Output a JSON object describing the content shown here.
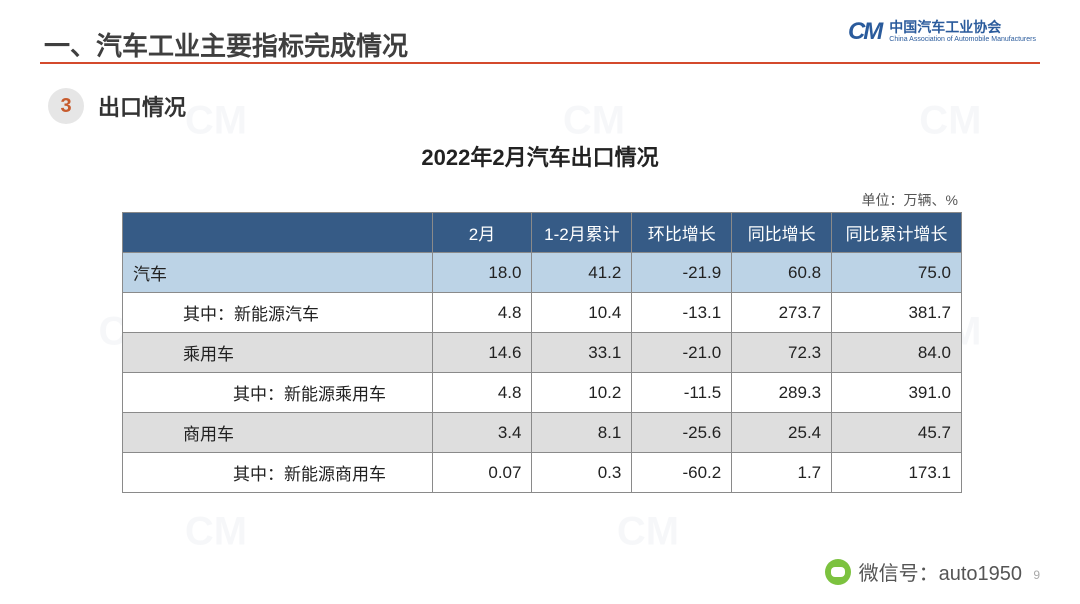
{
  "header": {
    "page_title": "一、汽车工业主要指标完成情况",
    "logo_mark": "CM",
    "logo_cn": "中国汽车工业协会",
    "logo_en": "China Association of Automobile Manufacturers",
    "rule_color": "#d44a2c"
  },
  "section": {
    "badge_number": "3",
    "badge_bg": "#e6e6e6",
    "badge_fg": "#c75b2d",
    "section_title": "出口情况"
  },
  "table": {
    "title": "2022年2月汽车出口情况",
    "unit_label": "单位：万辆、%",
    "header_bg": "#365b86",
    "header_fg": "#ffffff",
    "highlight_bg": "#bcd3e6",
    "shade_bg": "#dedede",
    "border_color": "#8a8a8a",
    "columns": [
      "",
      "2月",
      "1-2月累计",
      "环比增长",
      "同比增长",
      "同比累计增长"
    ],
    "rows": [
      {
        "label": "汽车",
        "indent": 0,
        "style": "hl",
        "values": [
          "18.0",
          "41.2",
          "-21.9",
          "60.8",
          "75.0"
        ]
      },
      {
        "label": "其中：新能源汽车",
        "indent": 1,
        "style": "plain",
        "values": [
          "4.8",
          "10.4",
          "-13.1",
          "273.7",
          "381.7"
        ]
      },
      {
        "label": "乘用车",
        "indent": 1,
        "style": "shade",
        "values": [
          "14.6",
          "33.1",
          "-21.0",
          "72.3",
          "84.0"
        ]
      },
      {
        "label": "其中：新能源乘用车",
        "indent": 2,
        "style": "plain",
        "values": [
          "4.8",
          "10.2",
          "-11.5",
          "289.3",
          "391.0"
        ]
      },
      {
        "label": "商用车",
        "indent": 1,
        "style": "shade",
        "values": [
          "3.4",
          "8.1",
          "-25.6",
          "25.4",
          "45.7"
        ]
      },
      {
        "label": "其中：新能源商用车",
        "indent": 2,
        "style": "plain",
        "values": [
          "0.07",
          "0.3",
          "-60.2",
          "1.7",
          "173.1"
        ]
      }
    ]
  },
  "footer": {
    "wechat_label": "微信号：auto1950",
    "page_number": "9"
  }
}
